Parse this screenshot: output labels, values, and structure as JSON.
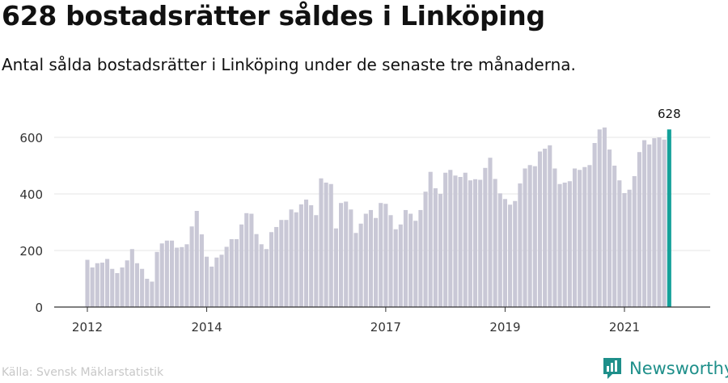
{
  "title": "628 bostadsrätter såldes i Linköping",
  "subtitle": "Antal sålda bostadsrätter i Linköping under de senaste tre månaderna.",
  "source": "Källa: Svensk Mäklarstatistik",
  "brand": {
    "name": "Newsworthy",
    "icon": "newsworthy-logo-icon"
  },
  "colors": {
    "bar": "#c9c8d6",
    "highlight": "#14a19a",
    "grid": "#e6e6e6",
    "axis": "#333333"
  },
  "chart_data": {
    "type": "bar",
    "ylim": [
      0,
      700
    ],
    "yticks": [
      0,
      200,
      400,
      600
    ],
    "xticks": [
      {
        "label": "2012",
        "index": 0
      },
      {
        "label": "2014",
        "index": 24
      },
      {
        "label": "2017",
        "index": 60
      },
      {
        "label": "2019",
        "index": 84
      },
      {
        "label": "2021",
        "index": 108
      }
    ],
    "highlight_label": "628",
    "values": [
      167,
      140,
      155,
      157,
      170,
      135,
      120,
      140,
      165,
      205,
      155,
      135,
      100,
      90,
      195,
      225,
      235,
      235,
      210,
      212,
      222,
      285,
      340,
      257,
      178,
      143,
      175,
      185,
      213,
      240,
      240,
      292,
      332,
      330,
      258,
      222,
      205,
      265,
      283,
      308,
      308,
      345,
      335,
      363,
      380,
      360,
      325,
      455,
      440,
      435,
      278,
      368,
      373,
      345,
      262,
      295,
      330,
      343,
      315,
      368,
      365,
      325,
      275,
      292,
      343,
      330,
      305,
      343,
      408,
      478,
      420,
      400,
      475,
      485,
      465,
      460,
      475,
      448,
      452,
      450,
      492,
      528,
      453,
      402,
      382,
      362,
      375,
      437,
      490,
      502,
      498,
      550,
      560,
      572,
      490,
      435,
      440,
      445,
      490,
      485,
      495,
      502,
      580,
      628,
      635,
      557,
      500,
      448,
      403,
      415,
      463,
      548,
      590,
      575,
      597,
      600,
      592,
      628
    ]
  }
}
